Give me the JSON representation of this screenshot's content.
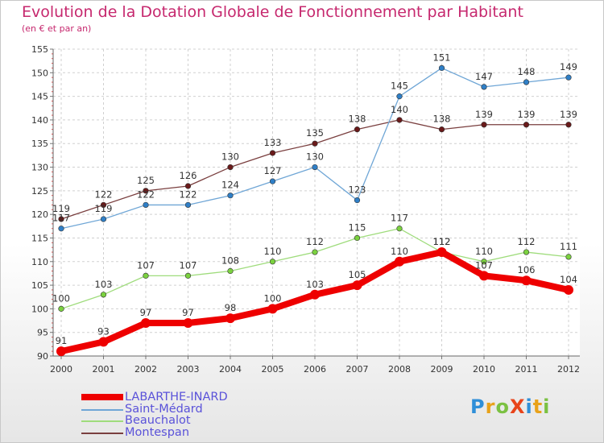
{
  "title": "Evolution de la Dotation Globale de Fonctionnement par Habitant",
  "subtitle": "(en € et par an)",
  "logo": {
    "text": "ProXiti",
    "letters": [
      {
        "ch": "P",
        "color": "#2f8fd8"
      },
      {
        "ch": "r",
        "color": "#e8a21a"
      },
      {
        "ch": "o",
        "color": "#7bc142"
      },
      {
        "ch": "X",
        "color": "#e8441a"
      },
      {
        "ch": "i",
        "color": "#2f8fd8"
      },
      {
        "ch": "t",
        "color": "#e8a21a"
      },
      {
        "ch": "i",
        "color": "#7bc142"
      }
    ]
  },
  "chart_data": {
    "type": "line",
    "title": "Evolution de la Dotation Globale de Fonctionnement par Habitant",
    "subtitle": "(en € et par an)",
    "x": [
      "2000",
      "2001",
      "2002",
      "2003",
      "2004",
      "2005",
      "2006",
      "2007",
      "2008",
      "2009",
      "2010",
      "2011",
      "2012"
    ],
    "ylim": [
      90,
      155
    ],
    "yticks": [
      90,
      95,
      100,
      105,
      110,
      115,
      120,
      125,
      130,
      135,
      140,
      145,
      150,
      155
    ],
    "grid": true,
    "legend_position": "bottom-left",
    "series": [
      {
        "name": "LABARTHE-INARD",
        "color": "#ee0000",
        "marker": "#ee0000",
        "width": "thick",
        "values": [
          91,
          93,
          97,
          97,
          98,
          100,
          103,
          105,
          110,
          112,
          107,
          106,
          104
        ]
      },
      {
        "name": "Saint-Médard",
        "color": "#6fa6d6",
        "marker": "#2f7fc7",
        "width": "thin",
        "values": [
          117,
          119,
          122,
          122,
          124,
          127,
          130,
          123,
          145,
          151,
          147,
          148,
          149
        ]
      },
      {
        "name": "Beauchalot",
        "color": "#9fdc7c",
        "marker": "#7bd23f",
        "width": "thin",
        "values": [
          100,
          103,
          107,
          107,
          108,
          110,
          112,
          115,
          117,
          112,
          110,
          112,
          111
        ]
      },
      {
        "name": "Montespan",
        "color": "#7a3f3f",
        "marker": "#6a1a1a",
        "width": "thin",
        "values": [
          119,
          122,
          125,
          126,
          130,
          133,
          135,
          138,
          140,
          138,
          139,
          139,
          139
        ]
      }
    ],
    "data_labels": [
      [
        "91",
        "93",
        "97",
        "97",
        "98",
        "100",
        "103",
        "105",
        "110",
        "112",
        "107",
        "106",
        "104"
      ],
      [
        "117",
        "119",
        "122",
        "122",
        "124",
        "127",
        "130",
        "123",
        "145",
        "151",
        "147",
        "148",
        "149"
      ],
      [
        "100",
        "103",
        "107",
        "107",
        "108",
        "110",
        "112",
        "115",
        "117",
        "112",
        "110",
        "112",
        "111"
      ],
      [
        "119",
        "122",
        "125",
        "126",
        "130",
        "133",
        "135",
        "138",
        "140",
        "138",
        "139",
        "139",
        "139"
      ]
    ]
  }
}
